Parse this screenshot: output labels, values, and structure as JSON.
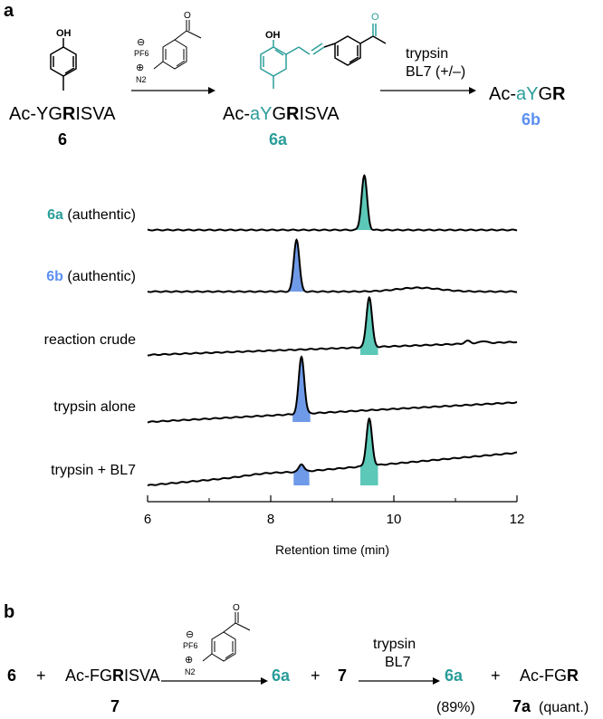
{
  "panel_a": {
    "label": "a",
    "reagent_charge": "⊖",
    "reagent_counterion": "PF6",
    "reagent_cation": "⊕",
    "reagent_n2": "N2",
    "phenol_oh": "OH",
    "azo_oh": "OH",
    "azo_o": "O",
    "reagent_o": "O",
    "sm_label": {
      "prefix": "Ac-YG",
      "bold": "R",
      "suffix": "ISVA"
    },
    "sm_number": "6",
    "product_label": {
      "prefix": "Ac-",
      "teal": "aY",
      "mid": "G",
      "bold": "R",
      "suffix": "ISVA"
    },
    "product_number": "6a",
    "cond_line1": "trypsin",
    "cond_line2": "BL7 (+/–)",
    "fragment_label": {
      "prefix": "Ac-",
      "teal": "aY",
      "mid": "G",
      "bold": "R"
    },
    "fragment_number": "6b"
  },
  "panel_b": {
    "label": "b",
    "reagent_charge": "⊖",
    "reagent_counterion": "PF6",
    "reagent_cation": "⊕",
    "reagent_n2": "N2",
    "reagent_o": "O",
    "sm1": "6",
    "plus1": "+",
    "sm2": {
      "prefix": "Ac-FG",
      "bold": "R",
      "suffix": "ISVA"
    },
    "sm2_number": "7",
    "p1": "6a",
    "plus2": "+",
    "p2": "7",
    "cond_line1": "trypsin",
    "cond_line2": "BL7",
    "f1": "6a",
    "f1_yield": "(89%)",
    "plus3": "+",
    "f2": {
      "prefix": "Ac-FG",
      "bold": "R"
    },
    "f2_number": "7a",
    "f2_yield": "(quant.)"
  },
  "colors": {
    "teal": "#2a9d9a",
    "teal_fill": "#5cc8b8",
    "blue": "#5b8ff0",
    "blue_fill": "#6f9ae8",
    "line": "#000000"
  },
  "chart_data": {
    "type": "line",
    "xlabel": "Retention time (min)",
    "xlim": [
      6,
      12
    ],
    "xticks": [
      6,
      8,
      10,
      12
    ],
    "traces": [
      {
        "label_id": "6a",
        "label_text": " (authentic)",
        "label_color": "teal",
        "baseline_drift": 0.0,
        "peaks": [
          {
            "rt": 9.52,
            "height": 1.0,
            "width": 0.045,
            "fill": "teal"
          }
        ],
        "bumps": []
      },
      {
        "label_id": "6b",
        "label_text": " (authentic)",
        "label_color": "blue",
        "baseline_drift": 0.0,
        "peaks": [
          {
            "rt": 8.42,
            "height": 0.96,
            "width": 0.045,
            "fill": "blue"
          }
        ],
        "bumps": [
          {
            "rt": 10.4,
            "height": 0.07,
            "width": 0.35
          }
        ]
      },
      {
        "label_id": "",
        "label_text": "reaction crude",
        "label_color": "black",
        "baseline_drift": 0.02,
        "peaks": [
          {
            "rt": 9.6,
            "height": 0.92,
            "width": 0.045,
            "fill": "teal"
          }
        ],
        "bumps": [
          {
            "rt": 11.2,
            "height": 0.05,
            "width": 0.05
          },
          {
            "rt": 11.45,
            "height": 0.04,
            "width": 0.05
          }
        ]
      },
      {
        "label_id": "",
        "label_text": "trypsin alone",
        "label_color": "black",
        "baseline_drift": 0.03,
        "peaks": [
          {
            "rt": 8.5,
            "height": 1.05,
            "width": 0.045,
            "fill": "blue"
          }
        ],
        "bumps": []
      },
      {
        "label_id": "",
        "label_text": "trypsin + BL7",
        "label_color": "black",
        "baseline_drift": 0.05,
        "peaks": [
          {
            "rt": 8.5,
            "height": 0.14,
            "width": 0.04,
            "fill": "blue"
          },
          {
            "rt": 9.6,
            "height": 0.86,
            "width": 0.045,
            "fill": "teal"
          }
        ],
        "bumps": [
          {
            "rt": 7.9,
            "height": 0.03,
            "width": 0.3
          }
        ]
      }
    ]
  }
}
